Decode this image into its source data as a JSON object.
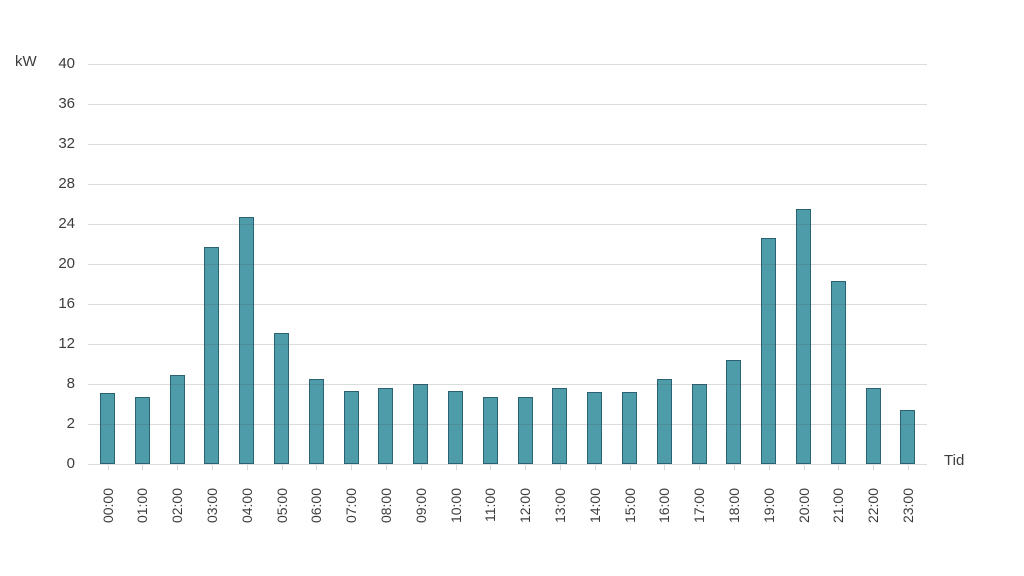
{
  "chart": {
    "y_axis_label": "kW",
    "x_axis_label": "Tid",
    "colors": {
      "bar_fill": "#4E9BAA",
      "bar_border": "#2B6272",
      "gridline": "#D9D9D9",
      "text": "#3C3C3C",
      "background": "#FFFFFF"
    }
  },
  "chart_data": {
    "type": "bar",
    "title": "",
    "xlabel": "Tid",
    "ylabel": "kW",
    "categories": [
      "00:00",
      "01:00",
      "02:00",
      "03:00",
      "04:00",
      "05:00",
      "06:00",
      "07:00",
      "08:00",
      "09:00",
      "10:00",
      "11:00",
      "12:00",
      "13:00",
      "14:00",
      "15:00",
      "16:00",
      "17:00",
      "18:00",
      "19:00",
      "20:00",
      "21:00",
      "22:00",
      "23:00"
    ],
    "values": [
      7.1,
      6.7,
      8.9,
      21.7,
      24.7,
      13.1,
      8.5,
      7.3,
      7.6,
      8.0,
      7.3,
      6.7,
      6.7,
      7.6,
      7.2,
      7.2,
      8.5,
      8.0,
      10.4,
      22.6,
      25.5,
      18.3,
      7.6,
      5.4
    ],
    "ylim": [
      0,
      40
    ],
    "y_tick_labels_as_shown": [
      "40",
      "36",
      "32",
      "28",
      "24",
      "20",
      "16",
      "12",
      "8",
      "2",
      "0"
    ],
    "grid": true,
    "legend": false,
    "bar_orientation": "vertical",
    "x_tick_label_rotation_deg": 90
  }
}
